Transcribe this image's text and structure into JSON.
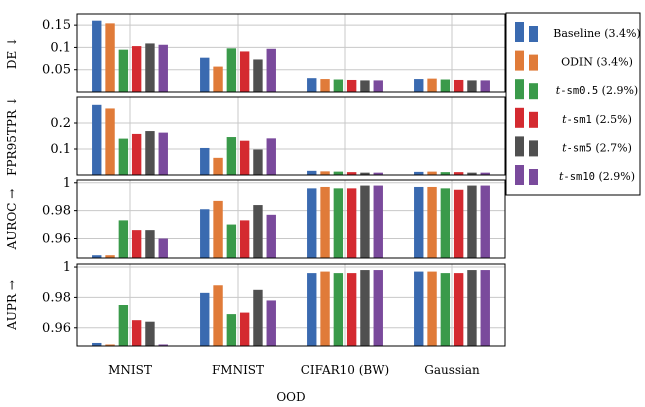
{
  "chart_data": {
    "type": "bar",
    "xlabel": "OOD",
    "categories": [
      "MNIST",
      "FMNIST",
      "CIFAR10 (BW)",
      "Gaussian"
    ],
    "series": [
      {
        "name": "Baseline (3.4%)",
        "color": "#3a6ab0"
      },
      {
        "name": "ODIN (3.4%)",
        "color": "#e07b39"
      },
      {
        "name": "t-sm0.5 (2.9%)",
        "color": "#3a9a4a"
      },
      {
        "name": "t-sm1 (2.5%)",
        "color": "#d42a30"
      },
      {
        "name": "t-sm5 (2.7%)",
        "color": "#505050"
      },
      {
        "name": "t-sm10 (2.9%)",
        "color": "#7a4a9c"
      }
    ],
    "legend_labels": [
      {
        "prefix": "",
        "italic": "",
        "mono": "",
        "text": "Baseline (3.4%)"
      },
      {
        "prefix": "",
        "italic": "",
        "mono": "",
        "text": "ODIN (3.4%)"
      },
      {
        "prefix": "",
        "italic": "t",
        "mono": "-sm0.5",
        "text": " (2.9%)"
      },
      {
        "prefix": "",
        "italic": "t",
        "mono": "-sm1",
        "text": " (2.5%)"
      },
      {
        "prefix": "",
        "italic": "t",
        "mono": "-sm5",
        "text": " (2.7%)"
      },
      {
        "prefix": "",
        "italic": "t",
        "mono": "-sm10",
        "text": " (2.9%)"
      }
    ],
    "legend_placement": "right",
    "grid": true,
    "panels": [
      {
        "ylabel": "DE ↓",
        "ylim": [
          0,
          0.175
        ],
        "yticks": [
          0.05,
          0.1,
          0.15
        ],
        "ytick_labels": [
          "0.05",
          "0.1",
          "0.15"
        ],
        "values": [
          [
            0.16,
            0.154,
            0.095,
            0.103,
            0.109,
            0.106
          ],
          [
            0.077,
            0.057,
            0.098,
            0.091,
            0.073,
            0.097
          ],
          [
            0.031,
            0.029,
            0.028,
            0.027,
            0.026,
            0.026
          ],
          [
            0.029,
            0.03,
            0.028,
            0.027,
            0.026,
            0.026
          ]
        ]
      },
      {
        "ylabel": "FPR95TPR ↓",
        "ylim": [
          0,
          0.3
        ],
        "yticks": [
          0.1,
          0.2
        ],
        "ytick_labels": [
          "0.1",
          "0.2"
        ],
        "values": [
          [
            0.27,
            0.256,
            0.14,
            0.158,
            0.169,
            0.163
          ],
          [
            0.104,
            0.066,
            0.146,
            0.132,
            0.098,
            0.141
          ],
          [
            0.016,
            0.014,
            0.013,
            0.011,
            0.009,
            0.009
          ],
          [
            0.012,
            0.013,
            0.011,
            0.011,
            0.009,
            0.009
          ]
        ]
      },
      {
        "ylabel": "AUROC →",
        "ylim": [
          0.946,
          1.002
        ],
        "yticks": [
          0.96,
          0.98,
          1
        ],
        "ytick_labels": [
          "0.96",
          "0.98",
          "1"
        ],
        "values": [
          [
            0.948,
            0.948,
            0.973,
            0.966,
            0.966,
            0.96
          ],
          [
            0.981,
            0.987,
            0.97,
            0.973,
            0.984,
            0.977
          ],
          [
            0.996,
            0.997,
            0.996,
            0.996,
            0.998,
            0.998
          ],
          [
            0.997,
            0.997,
            0.996,
            0.995,
            0.998,
            0.998
          ]
        ]
      },
      {
        "ylabel": "AUPR →",
        "ylim": [
          0.948,
          1.002
        ],
        "yticks": [
          0.96,
          0.98,
          1
        ],
        "ytick_labels": [
          "0.96",
          "0.98",
          "1"
        ],
        "values": [
          [
            0.95,
            0.949,
            0.975,
            0.965,
            0.964,
            0.949
          ],
          [
            0.983,
            0.988,
            0.969,
            0.97,
            0.985,
            0.978
          ],
          [
            0.996,
            0.997,
            0.996,
            0.996,
            0.998,
            0.998
          ],
          [
            0.997,
            0.997,
            0.996,
            0.996,
            0.998,
            0.998
          ]
        ]
      }
    ]
  }
}
